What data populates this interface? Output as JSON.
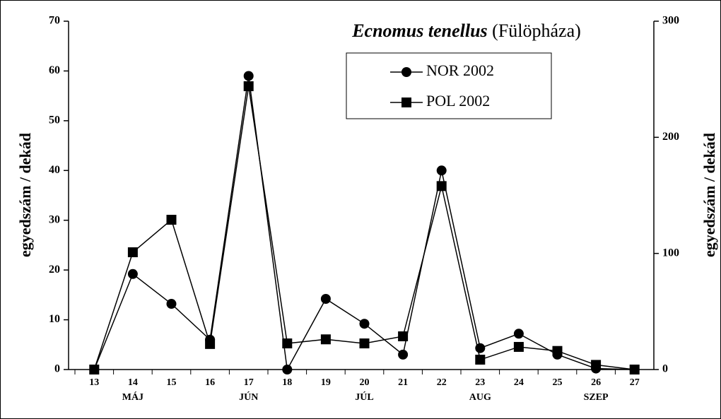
{
  "chart_data": {
    "type": "line",
    "title": "Ecnomus tenellus",
    "subtitle": "(Fülöpháza)",
    "y_label": "egyedszám / dekád",
    "y2_label": "egyedszám / dekád",
    "categories": [
      "13",
      "14",
      "15",
      "16",
      "17",
      "18",
      "19",
      "20",
      "21",
      "22",
      "23",
      "24",
      "25",
      "26",
      "27"
    ],
    "months": [
      null,
      "MÁJ",
      null,
      null,
      "JÚN",
      null,
      null,
      "JÚL",
      null,
      null,
      "AUG",
      null,
      null,
      "SZEP",
      null
    ],
    "ylim": [
      0,
      70
    ],
    "yticks": [
      0,
      10,
      20,
      30,
      40,
      50,
      60,
      70
    ],
    "y2lim": [
      0,
      300
    ],
    "y2ticks": [
      0,
      100,
      200,
      300
    ],
    "series": [
      {
        "name": "NOR 2002",
        "color": "#000000",
        "marker": "circle",
        "values": [
          0,
          19.2,
          13.2,
          6,
          59,
          0,
          14.2,
          9.2,
          3,
          40,
          4.3,
          7.2,
          3,
          0.2,
          0
        ]
      },
      {
        "name": "POL 2002",
        "color": "#000000",
        "marker": "square",
        "axis": "y2",
        "values": [
          0,
          101,
          129,
          22,
          244,
          22.5,
          26,
          22.5,
          28.6,
          158,
          8.5,
          19.5,
          16,
          4,
          0
        ]
      }
    ]
  }
}
